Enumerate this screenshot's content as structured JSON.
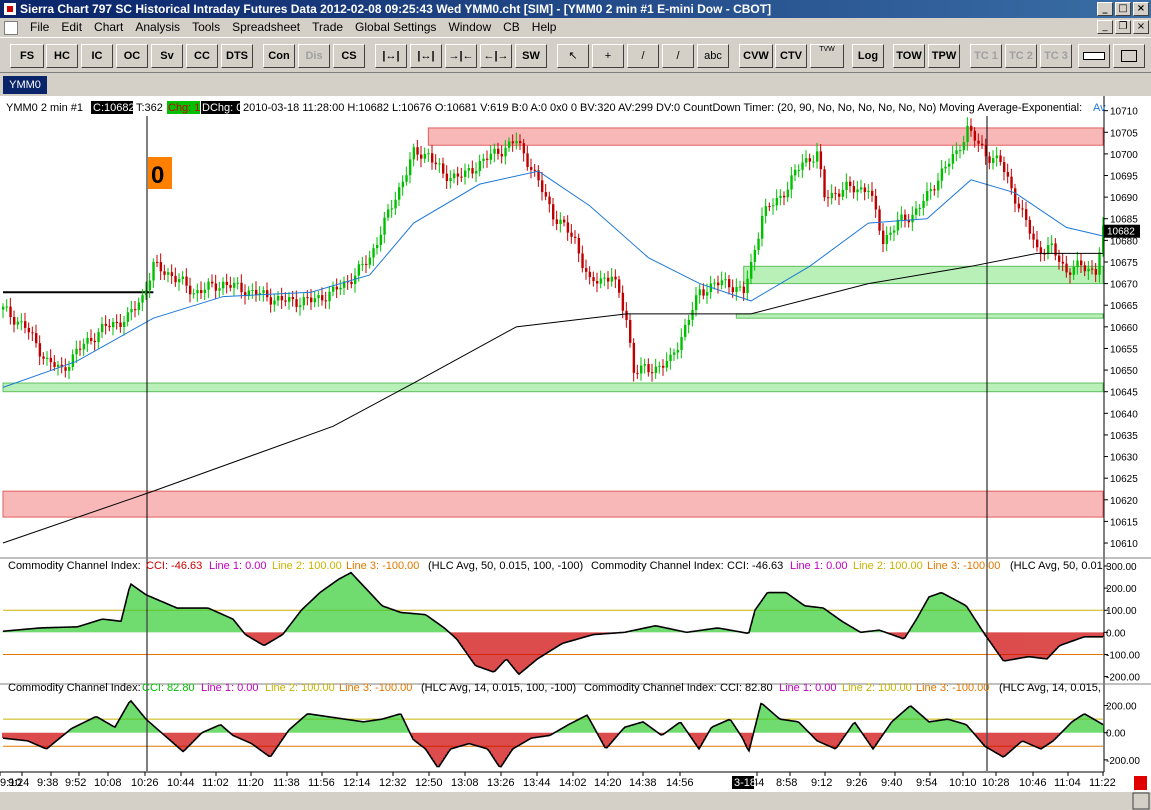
{
  "window": {
    "title": "Sierra Chart 797 SC Historical Intraday Futures Data 2012-02-08  09:25:43 Wed  YMM0.cht [SIM] - [YMM0  2 min  #1  E-mini Dow - CBOT]"
  },
  "menu": {
    "items": [
      "File",
      "Edit",
      "Chart",
      "Analysis",
      "Tools",
      "Spreadsheet",
      "Trade",
      "Global Settings",
      "Window",
      "CB",
      "Help"
    ]
  },
  "toolbar": {
    "buttons": [
      "FS",
      "HC",
      "IC",
      "OC",
      "Sv",
      "CC",
      "DTS",
      "Con",
      "Dis",
      "CS",
      "|↔|",
      "|↔|",
      "→|←",
      "←|→",
      "SW",
      "↖",
      "+",
      "/",
      "/",
      "abc",
      "CVW",
      "CTV",
      "TVW",
      "Log",
      "TOW",
      "TPW",
      "TC 1",
      "TC 2",
      "TC 3"
    ]
  },
  "tab": {
    "label": "YMM0"
  },
  "colors": {
    "up_bar": "#00c000",
    "down_bar": "#c00000",
    "ema": "#1e78d8",
    "sma": "#000000",
    "cci_pos": "#33cc33",
    "cci_neg": "#cc0000",
    "zone_red": "#f8b8b8",
    "zone_green": "#b8f0b8",
    "line1": "#ff00ff",
    "line2": "#c8b400",
    "line3": "#e07800"
  },
  "header": {
    "prefix": "YMM0  2 min   #1",
    "close": "C:10682",
    "ticks": "T:362",
    "chg": "Chg: 1",
    "dchg": "DChg: 0",
    "details": "2010-03-18 11:28:00 H:10682 L:10676 O:10681 V:619 B:0 A:0 0x0 0 BV:320 AV:299 DV:0 CountDown Timer:   (20, 90, No, No, No, No, No, No)  Moving Average-Exponential:",
    "tail": "Av"
  },
  "session_marker": "0",
  "price_label": "10682",
  "cci50": {
    "name": "Commodity Channel Index:",
    "cci": "CCI: -46.63",
    "line1": "Line 1: 0.00",
    "line2": "Line 2: 100.00",
    "line3": "Line 3: -100.00",
    "params": "(HLC Avg, 50, 0.015, 100, -100)",
    "name_b": "Commodity Channel Index:",
    "cci_b": "CCI: -46.63",
    "line1_b": "Line 1: 0.00",
    "line2_b": "Line 2: 100.00",
    "line3_b": "Line 3: -100.00",
    "params_b": "(HLC Avg, 50, 0.01"
  },
  "cci14": {
    "name": "Commodity Channel Index:",
    "cci": "CCI: 82.80",
    "line1": "Line 1: 0.00",
    "line2": "Line 2: 100.00",
    "line3": "Line 3: -100.00",
    "params": "(HLC Avg, 14, 0.015, 100, -100)",
    "name_b": "Commodity Channel Index:",
    "cci_b": "CCI: 82.80",
    "line1_b": "Line 1: 0.00",
    "line2_b": "Line 2: 100.00",
    "line3_b": "Line 3: -100.00",
    "params_b": "(HLC Avg, 14, 0.015,"
  },
  "date_marker": "3-18",
  "chart_data": {
    "type": "candlestick",
    "price_axis": {
      "ylim": [
        10607,
        10712
      ],
      "ticks": [
        "10710",
        "10705",
        "10700",
        "10695",
        "10690",
        "10685",
        "10680",
        "10675",
        "10670",
        "10665",
        "10660",
        "10655",
        "10650",
        "10645",
        "10640",
        "10635",
        "10630",
        "10625",
        "10620",
        "10615",
        "10610"
      ]
    },
    "cci50_axis": {
      "ylim": [
        -220,
        300
      ],
      "ticks": [
        "300.00",
        "200.00",
        "100.00",
        "0.00",
        "-100.00",
        "-200.00"
      ]
    },
    "cci14_axis": {
      "ylim": [
        -260,
        300
      ],
      "ticks": [
        "200.00",
        "0.00",
        "-200.00"
      ]
    },
    "time_labels": [
      "9:10",
      "9:24",
      "9:38",
      "9:52",
      "10:08",
      "10:26",
      "10:44",
      "11:02",
      "11:20",
      "11:38",
      "11:56",
      "12:14",
      "12:32",
      "12:50",
      "13:08",
      "13:26",
      "13:44",
      "14:02",
      "14:20",
      "14:38",
      "14:56",
      "8:44",
      "8:58",
      "9:12",
      "9:26",
      "9:40",
      "9:54",
      "10:10",
      "10:28",
      "10:46",
      "11:04",
      "11:22"
    ],
    "close_path": [
      [
        0,
        10664
      ],
      [
        6,
        10660
      ],
      [
        12,
        10652
      ],
      [
        16,
        10650
      ],
      [
        22,
        10656
      ],
      [
        28,
        10660
      ],
      [
        34,
        10662
      ],
      [
        38,
        10667
      ],
      [
        41,
        10674
      ],
      [
        46,
        10672
      ],
      [
        52,
        10668
      ],
      [
        60,
        10670
      ],
      [
        68,
        10668
      ],
      [
        76,
        10666
      ],
      [
        84,
        10666
      ],
      [
        90,
        10668
      ],
      [
        96,
        10672
      ],
      [
        100,
        10676
      ],
      [
        104,
        10684
      ],
      [
        108,
        10692
      ],
      [
        112,
        10700
      ],
      [
        116,
        10700
      ],
      [
        120,
        10695
      ],
      [
        126,
        10695
      ],
      [
        130,
        10698
      ],
      [
        136,
        10701
      ],
      [
        140,
        10703
      ],
      [
        144,
        10697
      ],
      [
        150,
        10686
      ],
      [
        156,
        10680
      ],
      [
        160,
        10670
      ],
      [
        166,
        10672
      ],
      [
        170,
        10662
      ],
      [
        172,
        10650
      ],
      [
        176,
        10650
      ],
      [
        182,
        10652
      ],
      [
        186,
        10660
      ],
      [
        190,
        10668
      ],
      [
        194,
        10670
      ],
      [
        198,
        10670
      ],
      [
        202,
        10668
      ],
      [
        204,
        10674
      ],
      [
        207,
        10686
      ],
      [
        212,
        10690
      ],
      [
        218,
        10698
      ],
      [
        222,
        10700
      ],
      [
        224,
        10690
      ],
      [
        230,
        10692
      ],
      [
        236,
        10692
      ],
      [
        240,
        10680
      ],
      [
        244,
        10684
      ],
      [
        248,
        10686
      ],
      [
        252,
        10690
      ],
      [
        256,
        10696
      ],
      [
        260,
        10700
      ],
      [
        263,
        10706
      ],
      [
        266,
        10702
      ],
      [
        268,
        10700
      ],
      [
        272,
        10698
      ],
      [
        275,
        10692
      ],
      [
        278,
        10686
      ],
      [
        282,
        10678
      ],
      [
        286,
        10678
      ],
      [
        290,
        10673
      ],
      [
        294,
        10674
      ],
      [
        298,
        10673
      ],
      [
        300,
        10682
      ]
    ],
    "ema_path": [
      [
        0,
        10646
      ],
      [
        20,
        10652
      ],
      [
        41,
        10662
      ],
      [
        60,
        10667
      ],
      [
        84,
        10668
      ],
      [
        100,
        10672
      ],
      [
        112,
        10684
      ],
      [
        130,
        10693
      ],
      [
        146,
        10696
      ],
      [
        160,
        10688
      ],
      [
        176,
        10676
      ],
      [
        190,
        10670
      ],
      [
        204,
        10666
      ],
      [
        220,
        10674
      ],
      [
        236,
        10684
      ],
      [
        252,
        10685
      ],
      [
        264,
        10694
      ],
      [
        276,
        10691
      ],
      [
        290,
        10683
      ],
      [
        300,
        10681
      ]
    ],
    "sma_path": [
      [
        0,
        10610
      ],
      [
        41,
        10622
      ],
      [
        90,
        10637
      ],
      [
        112,
        10647
      ],
      [
        140,
        10660
      ],
      [
        170,
        10663
      ],
      [
        204,
        10663
      ],
      [
        236,
        10670
      ],
      [
        264,
        10674
      ],
      [
        282,
        10677
      ],
      [
        300,
        10677
      ]
    ],
    "red_zones": [
      {
        "from": 10702,
        "to": 10706
      },
      {
        "from": 10616,
        "to": 10622
      }
    ],
    "green_zones": [
      {
        "from": 10670,
        "to": 10674
      },
      {
        "from": 10662,
        "to": 10663
      },
      {
        "from": 10645,
        "to": 10647
      }
    ],
    "black_hline": 10668,
    "cci50_path": [
      [
        0,
        5
      ],
      [
        12,
        20
      ],
      [
        24,
        25
      ],
      [
        32,
        60
      ],
      [
        38,
        50
      ],
      [
        41,
        220
      ],
      [
        46,
        170
      ],
      [
        56,
        110
      ],
      [
        66,
        110
      ],
      [
        74,
        60
      ],
      [
        78,
        -10
      ],
      [
        84,
        -60
      ],
      [
        90,
        -10
      ],
      [
        96,
        100
      ],
      [
        102,
        180
      ],
      [
        108,
        240
      ],
      [
        112,
        270
      ],
      [
        116,
        210
      ],
      [
        122,
        120
      ],
      [
        128,
        90
      ],
      [
        136,
        80
      ],
      [
        142,
        20
      ],
      [
        146,
        -30
      ],
      [
        152,
        -150
      ],
      [
        158,
        -180
      ],
      [
        162,
        -120
      ],
      [
        166,
        -190
      ],
      [
        172,
        -120
      ],
      [
        180,
        -50
      ],
      [
        190,
        -10
      ],
      [
        200,
        0
      ],
      [
        210,
        30
      ],
      [
        220,
        0
      ],
      [
        230,
        20
      ],
      [
        238,
        0
      ],
      [
        240,
        -5
      ],
      [
        242,
        100
      ],
      [
        246,
        180
      ],
      [
        252,
        180
      ],
      [
        258,
        120
      ],
      [
        264,
        110
      ],
      [
        270,
        50
      ],
      [
        276,
        0
      ],
      [
        282,
        10
      ],
      [
        290,
        -30
      ],
      [
        294,
        60
      ],
      [
        298,
        160
      ],
      [
        302,
        180
      ],
      [
        306,
        150
      ],
      [
        310,
        120
      ],
      [
        316,
        -10
      ],
      [
        322,
        -130
      ],
      [
        330,
        -110
      ],
      [
        336,
        -120
      ],
      [
        340,
        -60
      ],
      [
        348,
        -20
      ],
      [
        354,
        -20
      ]
    ],
    "cci14_path": [
      [
        0,
        -40
      ],
      [
        8,
        -60
      ],
      [
        14,
        -120
      ],
      [
        22,
        30
      ],
      [
        30,
        120
      ],
      [
        36,
        40
      ],
      [
        41,
        240
      ],
      [
        46,
        100
      ],
      [
        52,
        -20
      ],
      [
        58,
        -140
      ],
      [
        64,
        0
      ],
      [
        70,
        60
      ],
      [
        74,
        -20
      ],
      [
        80,
        -80
      ],
      [
        86,
        -180
      ],
      [
        92,
        20
      ],
      [
        98,
        140
      ],
      [
        104,
        120
      ],
      [
        110,
        100
      ],
      [
        116,
        80
      ],
      [
        122,
        100
      ],
      [
        128,
        140
      ],
      [
        132,
        -50
      ],
      [
        136,
        -120
      ],
      [
        140,
        -260
      ],
      [
        144,
        -120
      ],
      [
        150,
        -80
      ],
      [
        156,
        -120
      ],
      [
        160,
        -260
      ],
      [
        164,
        -120
      ],
      [
        170,
        -40
      ],
      [
        176,
        -20
      ],
      [
        182,
        60
      ],
      [
        188,
        130
      ],
      [
        194,
        -120
      ],
      [
        200,
        40
      ],
      [
        206,
        80
      ],
      [
        212,
        -20
      ],
      [
        218,
        80
      ],
      [
        224,
        -120
      ],
      [
        228,
        40
      ],
      [
        234,
        100
      ],
      [
        238,
        -40
      ],
      [
        240,
        -140
      ],
      [
        244,
        220
      ],
      [
        250,
        100
      ],
      [
        256,
        80
      ],
      [
        262,
        -60
      ],
      [
        268,
        -120
      ],
      [
        274,
        80
      ],
      [
        280,
        -120
      ],
      [
        286,
        80
      ],
      [
        292,
        200
      ],
      [
        298,
        80
      ],
      [
        304,
        100
      ],
      [
        310,
        60
      ],
      [
        316,
        -100
      ],
      [
        322,
        -180
      ],
      [
        328,
        -60
      ],
      [
        334,
        -120
      ],
      [
        338,
        -60
      ],
      [
        344,
        80
      ],
      [
        348,
        140
      ],
      [
        354,
        60
      ]
    ]
  }
}
